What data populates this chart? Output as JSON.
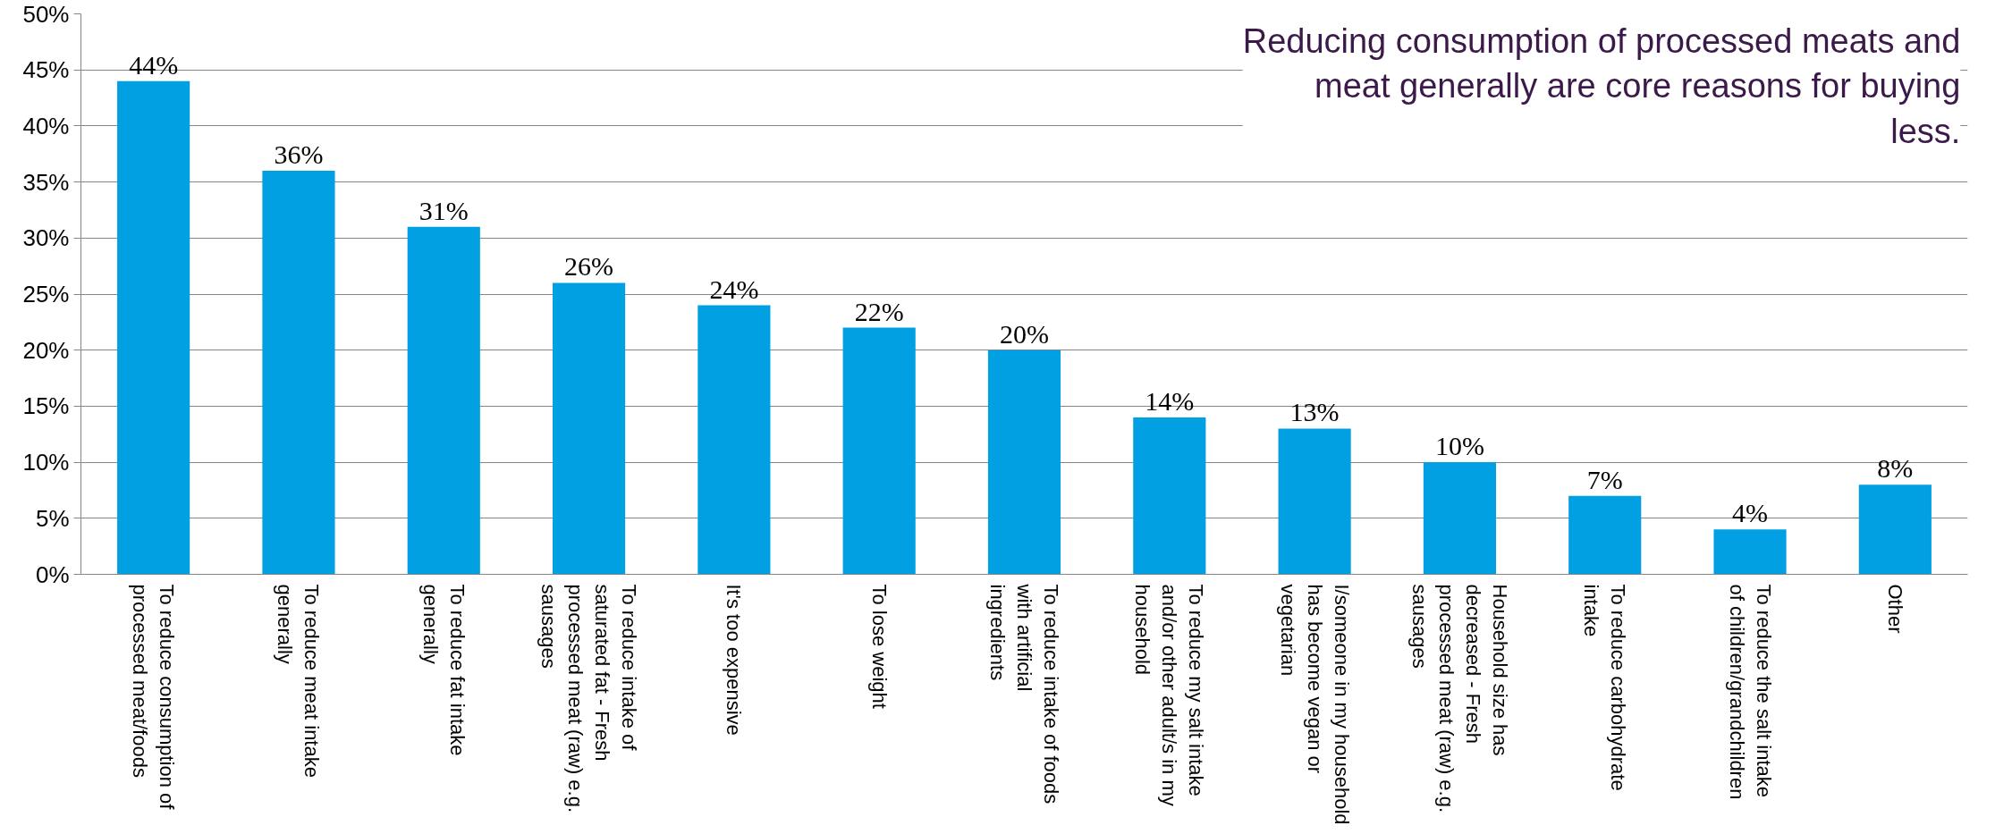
{
  "chart_data": {
    "type": "bar",
    "title": "Reducing consumption of processed meats and meat generally are core reasons for buying less.",
    "categories": [
      "To reduce consumption of processed meat/foods",
      "To reduce meat intake generally",
      "To reduce fat intake generally",
      "To reduce intake of saturated fat - Fresh processed meat (raw) e.g. sausages",
      "It's too expensive",
      "To lose weight",
      "To reduce intake of foods with artificial ingredients",
      "To reduce my salt intake and/or other adult/s in my household",
      "I/someone in my household has become vegan or vegetarian",
      "Household size has decreased - Fresh processed meat (raw) e.g. sausages",
      "To reduce carbohydrate intake",
      "To reduce the salt intake of children/grandchildren",
      "Other"
    ],
    "values": [
      44,
      36,
      31,
      26,
      24,
      22,
      20,
      14,
      13,
      10,
      7,
      4,
      8
    ],
    "value_labels": [
      "44%",
      "36%",
      "31%",
      "26%",
      "24%",
      "22%",
      "20%",
      "14%",
      "13%",
      "10%",
      "7%",
      "4%",
      "8%"
    ],
    "color": "#00a0e3",
    "ylim": [
      0,
      50
    ],
    "yticks": [
      {
        "value": 0,
        "label": "0%"
      },
      {
        "value": 5,
        "label": "5%"
      },
      {
        "value": 10,
        "label": "10%"
      },
      {
        "value": 15,
        "label": "15%"
      },
      {
        "value": 20,
        "label": "20%"
      },
      {
        "value": 25,
        "label": "25%"
      },
      {
        "value": 30,
        "label": "30%"
      },
      {
        "value": 35,
        "label": "35%"
      },
      {
        "value": 40,
        "label": "40%"
      },
      {
        "value": 45,
        "label": "45%"
      },
      {
        "value": 50,
        "label": "50%"
      }
    ],
    "grid": "y"
  }
}
